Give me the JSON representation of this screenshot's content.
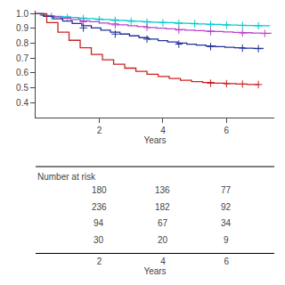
{
  "chart_data": [
    {
      "type": "step",
      "xlabel": "Years",
      "xlim": [
        0,
        7.5
      ],
      "ylim": [
        0.3,
        1.02
      ],
      "xticks": [
        2,
        4,
        6
      ],
      "yticks": [
        0.4,
        0.5,
        0.6,
        0.7,
        0.8,
        0.9,
        {
          "value": 1.0,
          "label": "1.0"
        }
      ],
      "grid": false,
      "series": [
        {
          "color": "#00CCCC",
          "marker": "plus",
          "x": [
            0,
            0.15,
            0.35,
            0.6,
            0.85,
            1.1,
            1.35,
            1.6,
            1.85,
            2.1,
            2.35,
            2.6,
            2.85,
            3.1,
            3.35,
            3.6,
            3.85,
            4.1,
            4.35,
            4.6,
            4.85,
            5.1,
            5.35,
            5.6,
            5.85,
            6.1,
            6.35,
            6.6,
            6.85,
            7.1,
            7.35
          ],
          "values": [
            1.0,
            0.99,
            0.986,
            0.982,
            0.978,
            0.974,
            0.97,
            0.967,
            0.963,
            0.96,
            0.957,
            0.954,
            0.951,
            0.948,
            0.946,
            0.943,
            0.941,
            0.939,
            0.937,
            0.935,
            0.933,
            0.931,
            0.929,
            0.927,
            0.925,
            0.923,
            0.921,
            0.92,
            0.919,
            0.918,
            0.917
          ],
          "censor_x": [
            0.5,
            1.0,
            1.5,
            2.0,
            2.5,
            3.0,
            3.5,
            4.0,
            4.5,
            5.0,
            5.5,
            6.0,
            6.5,
            7.0
          ],
          "censor_values": [
            0.982,
            0.974,
            0.967,
            0.96,
            0.954,
            0.948,
            0.943,
            0.939,
            0.935,
            0.931,
            0.927,
            0.923,
            0.92,
            0.918
          ]
        },
        {
          "color": "#BB44CC",
          "marker": "plus",
          "x": [
            0,
            0.2,
            0.5,
            0.8,
            1.1,
            1.4,
            1.7,
            2.0,
            2.3,
            2.6,
            2.9,
            3.2,
            3.5,
            3.8,
            4.1,
            4.4,
            4.7,
            5.0,
            5.3,
            5.6,
            5.9,
            6.2,
            6.5,
            6.8,
            7.1,
            7.4
          ],
          "values": [
            1.0,
            0.988,
            0.978,
            0.969,
            0.96,
            0.952,
            0.945,
            0.937,
            0.931,
            0.924,
            0.918,
            0.912,
            0.907,
            0.902,
            0.897,
            0.893,
            0.889,
            0.885,
            0.882,
            0.879,
            0.876,
            0.873,
            0.871,
            0.869,
            0.867,
            0.866
          ],
          "censor_x": [
            1.5,
            2.5,
            3.5,
            4.5,
            5.5,
            6.5,
            7.2
          ],
          "censor_values": [
            0.945,
            0.924,
            0.907,
            0.889,
            0.879,
            0.869,
            0.866
          ]
        },
        {
          "color": "#223399",
          "marker": "plus",
          "x": [
            0,
            0.25,
            0.55,
            0.85,
            1.15,
            1.45,
            1.75,
            2.05,
            2.35,
            2.65,
            2.95,
            3.25,
            3.55,
            3.85,
            4.15,
            4.45,
            4.75,
            5.05,
            5.35,
            5.65,
            5.95,
            6.25,
            6.55,
            6.85,
            7.15
          ],
          "values": [
            1.0,
            0.982,
            0.965,
            0.95,
            0.934,
            0.918,
            0.903,
            0.888,
            0.875,
            0.862,
            0.85,
            0.838,
            0.828,
            0.818,
            0.809,
            0.801,
            0.794,
            0.788,
            0.782,
            0.777,
            0.773,
            0.77,
            0.767,
            0.765,
            0.763
          ],
          "censor_x": [
            1.5,
            2.5,
            3.5,
            4.5,
            5.5,
            6.5,
            7.0
          ],
          "censor_values": [
            0.903,
            0.862,
            0.828,
            0.794,
            0.777,
            0.767,
            0.763
          ]
        },
        {
          "color": "#CC2222",
          "marker": "plus",
          "x": [
            0,
            0.35,
            0.7,
            1.05,
            1.4,
            1.75,
            2.1,
            2.45,
            2.8,
            3.15,
            3.5,
            3.85,
            4.2,
            4.55,
            4.9,
            5.25,
            5.6,
            5.95,
            6.3,
            6.65,
            7.0
          ],
          "values": [
            1.0,
            0.94,
            0.875,
            0.82,
            0.77,
            0.725,
            0.688,
            0.658,
            0.632,
            0.61,
            0.591,
            0.575,
            0.562,
            0.55,
            0.541,
            0.535,
            0.53,
            0.527,
            0.524,
            0.522,
            0.521
          ],
          "censor_x": [
            5.5,
            6.0,
            6.5,
            7.0
          ],
          "censor_values": [
            0.53,
            0.527,
            0.524,
            0.521
          ]
        }
      ]
    },
    {
      "type": "table",
      "title": "Number at risk",
      "xlabel": "Years",
      "xlim": [
        0,
        7.5
      ],
      "xticks": [
        2,
        4,
        6
      ],
      "rows": [
        [
          180,
          136,
          77
        ],
        [
          236,
          182,
          92
        ],
        [
          94,
          67,
          34
        ],
        [
          30,
          20,
          9
        ]
      ]
    }
  ]
}
